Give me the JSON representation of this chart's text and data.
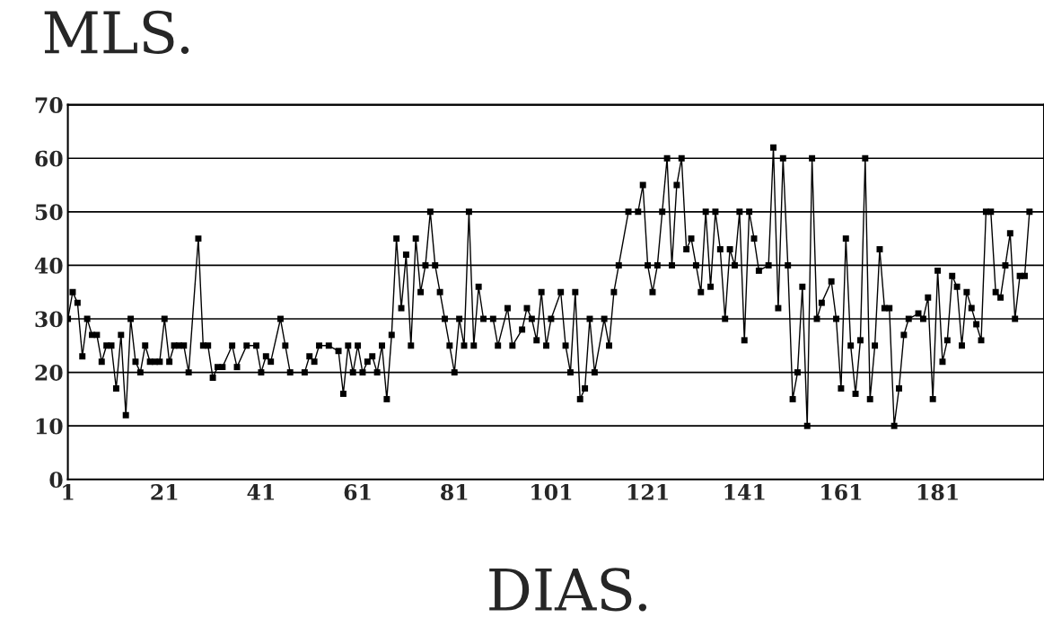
{
  "chart_data": {
    "type": "line",
    "title": "MLS.",
    "xlabel": "DIAS.",
    "xlim": [
      1,
      203
    ],
    "xticks": [
      1,
      21,
      41,
      61,
      81,
      101,
      121,
      141,
      161,
      181
    ],
    "ylim": [
      0,
      70
    ],
    "yticks": [
      0,
      10,
      20,
      30,
      40,
      50,
      60,
      70
    ],
    "grid": "y",
    "marker": "square",
    "line_style": "solid",
    "series": [
      {
        "color": "#000000",
        "x": [
          1,
          2,
          3,
          4,
          5,
          6,
          7,
          8,
          9,
          10,
          11,
          12,
          13,
          14,
          15,
          16,
          17,
          18,
          19,
          20,
          21,
          22,
          23,
          24,
          25,
          26,
          28,
          29,
          30,
          31,
          32,
          33,
          35,
          36,
          38,
          40,
          41,
          42,
          43,
          45,
          46,
          47,
          50,
          51,
          52,
          53,
          55,
          57,
          58,
          59,
          60,
          61,
          62,
          63,
          64,
          65,
          66,
          67,
          68,
          69,
          70,
          71,
          72,
          73,
          74,
          75,
          76,
          77,
          78,
          79,
          80,
          81,
          82,
          83,
          84,
          85,
          86,
          87,
          89,
          90,
          92,
          93,
          95,
          96,
          97,
          98,
          99,
          100,
          101,
          103,
          104,
          105,
          106,
          107,
          108,
          109,
          110,
          112,
          113,
          114,
          115,
          117,
          119,
          120,
          121,
          122,
          123,
          124,
          125,
          126,
          127,
          128,
          129,
          130,
          131,
          132,
          133,
          134,
          135,
          136,
          137,
          138,
          139,
          140,
          141,
          142,
          143,
          144,
          146,
          147,
          148,
          149,
          150,
          151,
          152,
          153,
          154,
          155,
          156,
          157,
          159,
          160,
          161,
          162,
          163,
          164,
          165,
          166,
          167,
          168,
          169,
          170,
          171,
          172,
          173,
          174,
          175,
          177,
          178,
          179,
          180,
          181,
          182,
          183,
          184,
          185,
          186,
          187,
          188,
          189,
          190,
          191,
          192,
          193,
          194,
          195,
          196,
          197,
          198,
          199,
          200
        ],
        "values": [
          30,
          35,
          33,
          23,
          30,
          27,
          27,
          22,
          25,
          25,
          17,
          27,
          12,
          30,
          22,
          20,
          25,
          22,
          22,
          22,
          30,
          22,
          25,
          25,
          25,
          20,
          45,
          25,
          25,
          19,
          21,
          21,
          25,
          21,
          25,
          25,
          20,
          23,
          22,
          30,
          25,
          20,
          20,
          23,
          22,
          25,
          25,
          24,
          16,
          25,
          20,
          25,
          20,
          22,
          23,
          20,
          25,
          15,
          27,
          45,
          32,
          42,
          25,
          45,
          35,
          40,
          50,
          40,
          35,
          30,
          25,
          20,
          30,
          25,
          50,
          25,
          36,
          30,
          30,
          25,
          32,
          25,
          28,
          32,
          30,
          26,
          35,
          25,
          30,
          35,
          25,
          20,
          35,
          15,
          17,
          30,
          20,
          30,
          25,
          35,
          40,
          50,
          50,
          55,
          40,
          35,
          40,
          50,
          60,
          40,
          55,
          60,
          43,
          45,
          40,
          35,
          50,
          36,
          50,
          43,
          30,
          43,
          40,
          50,
          26,
          50,
          45,
          39,
          40,
          62,
          32,
          60,
          40,
          15,
          20,
          36,
          10,
          60,
          30,
          33,
          37,
          30,
          17,
          45,
          25,
          16,
          26,
          60,
          15,
          25,
          43,
          32,
          32,
          10,
          17,
          27,
          30,
          31,
          30,
          34,
          15,
          39,
          22,
          26,
          38,
          36,
          25,
          35,
          32,
          29,
          26,
          50,
          50,
          35,
          34,
          40,
          46,
          30,
          38,
          38,
          50
        ]
      }
    ]
  }
}
